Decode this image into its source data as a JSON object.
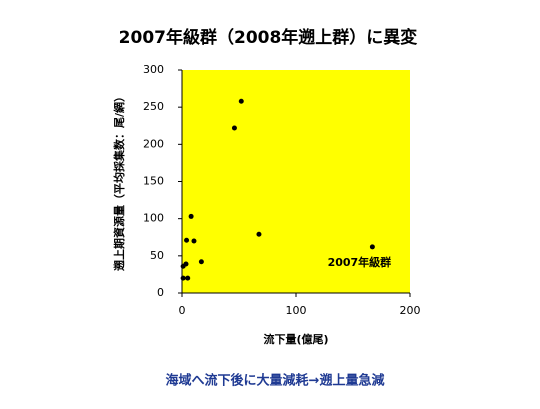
{
  "chart_data": {
    "type": "scatter",
    "title": "2007年級群（2008年遡上群）に異変",
    "x_label": "流下量(億尾)",
    "y_label": "遡上期資源量（平均採集数：尾/網）",
    "annotation": "2007年級群",
    "footer": "海域へ流下後に大量減耗→遡上量急減",
    "x": [
      1,
      3.5,
      5,
      1,
      4,
      10.5,
      8,
      17,
      46,
      52,
      67.5,
      167
    ],
    "values": [
      36,
      39,
      20,
      20,
      71,
      70,
      103,
      42,
      222,
      258,
      79,
      62
    ],
    "color": "#000000",
    "background": "#ffff00",
    "xlim": [
      0,
      200
    ],
    "xticks": [
      0,
      100,
      200
    ],
    "ylim": [
      0,
      300
    ],
    "yticks": [
      0,
      50,
      100,
      150,
      200,
      250,
      300
    ]
  }
}
